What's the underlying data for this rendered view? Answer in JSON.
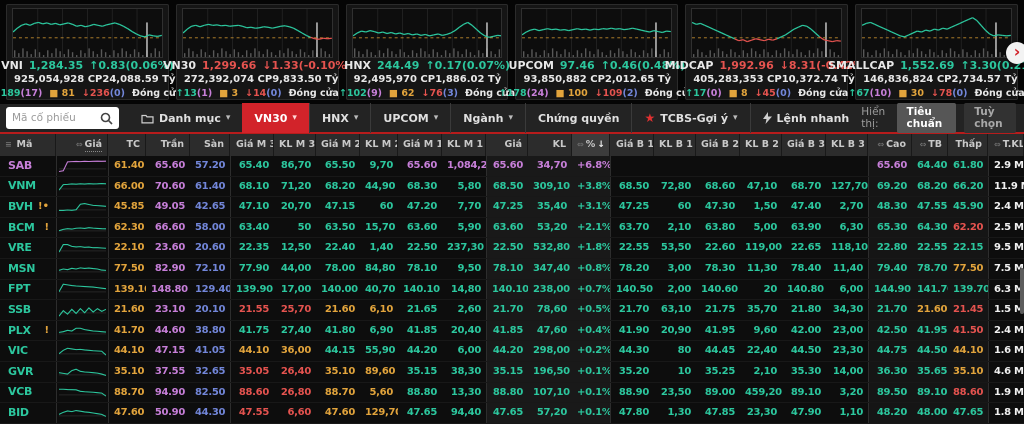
{
  "labels": {
    "session": "Đóng cửa",
    "display": "Hiển thị:",
    "next": "›"
  },
  "indices": [
    {
      "name": "VNI",
      "value": "1,284.35",
      "dir": "up",
      "change": "0.83(0.06%)",
      "cp": "925,054,928 CP",
      "ty": "24,088.59 Tỷ",
      "adv": "189",
      "adv_ceil": "17",
      "flat": "81",
      "dec": "236",
      "dec_floor": "0",
      "ref": 40,
      "seed": 1,
      "spark": [
        52,
        60,
        66,
        69,
        66,
        70,
        72,
        69,
        71,
        68,
        70,
        67,
        69,
        71,
        68,
        64,
        66,
        63,
        65,
        68,
        66,
        64,
        67,
        69,
        71,
        68,
        64,
        59,
        53,
        48,
        44,
        42,
        46,
        44,
        43,
        45
      ]
    },
    {
      "name": "VN30",
      "value": "1,299.66",
      "dir": "down",
      "change": "1.33(-0.10%)",
      "cp": "272,392,074 CP",
      "ty": "9,833.50 Tỷ",
      "adv": "13",
      "adv_ceil": "1",
      "flat": "3",
      "dec": "14",
      "dec_floor": "0",
      "ref": 40,
      "seed": 2,
      "spark": [
        50,
        58,
        64,
        66,
        63,
        66,
        68,
        66,
        67,
        65,
        66,
        64,
        65,
        66,
        64,
        61,
        62,
        60,
        61,
        63,
        62,
        60,
        62,
        64,
        65,
        63,
        60,
        55,
        50,
        45,
        41,
        38,
        37,
        39,
        38,
        39
      ]
    },
    {
      "name": "HNX",
      "value": "244.49",
      "dir": "up",
      "change": "0.17(0.07%)",
      "cp": "92,495,970 CP",
      "ty": "1,886.02 Tỷ",
      "adv": "102",
      "adv_ceil": "9",
      "flat": "62",
      "dec": "76",
      "dec_floor": "3",
      "ref": 40,
      "seed": 3,
      "spark": [
        44,
        50,
        54,
        52,
        55,
        53,
        50,
        52,
        49,
        51,
        48,
        50,
        47,
        49,
        46,
        48,
        45,
        47,
        44,
        46,
        48,
        45,
        47,
        50,
        55,
        62,
        68,
        72,
        66,
        58,
        50,
        44,
        41,
        43,
        45,
        44
      ]
    },
    {
      "name": "UPCOM",
      "value": "97.46",
      "dir": "up",
      "change": "0.46(0.48%)",
      "cp": "93,850,882 CP",
      "ty": "2,012.65 Tỷ",
      "adv": "178",
      "adv_ceil": "24",
      "flat": "100",
      "dec": "109",
      "dec_floor": "2",
      "ref": 40,
      "seed": 4,
      "spark": [
        46,
        52,
        56,
        58,
        55,
        57,
        59,
        57,
        58,
        56,
        57,
        55,
        57,
        59,
        57,
        58,
        56,
        58,
        57,
        59,
        58,
        60,
        58,
        59,
        57,
        58,
        60,
        58,
        56,
        54,
        52,
        55,
        53,
        51,
        54,
        53
      ]
    },
    {
      "name": "MIDCAP",
      "value": "1,992.96",
      "dir": "down",
      "change": "8.31(-0.42%)",
      "cp": "405,283,353 CP",
      "ty": "10,372.74 Tỷ",
      "adv": "17",
      "adv_ceil": "0",
      "flat": "8",
      "dec": "45",
      "dec_floor": "0",
      "ref": 40,
      "seed": 5,
      "spark": [
        72,
        68,
        70,
        66,
        62,
        58,
        54,
        50,
        46,
        42,
        38,
        34,
        36,
        32,
        35,
        38,
        36,
        34,
        37,
        35,
        38,
        42,
        46,
        52,
        58,
        62,
        66,
        64,
        58,
        50,
        42,
        36,
        34,
        32,
        34,
        33
      ]
    },
    {
      "name": "SMALLCAP",
      "value": "1,552.69",
      "dir": "up",
      "change": "3.30(0.21%)",
      "cp": "146,836,824 CP",
      "ty": "2,734.57 Tỷ",
      "adv": "67",
      "adv_ceil": "10",
      "flat": "30",
      "dec": "78",
      "dec_floor": "0",
      "ref": 40,
      "seed": 6,
      "spark": [
        66,
        70,
        72,
        68,
        64,
        60,
        56,
        52,
        48,
        44,
        42,
        46,
        50,
        54,
        52,
        56,
        54,
        58,
        56,
        60,
        58,
        62,
        66,
        70,
        74,
        78,
        82,
        76,
        66,
        56,
        48,
        44,
        46,
        45,
        44,
        45
      ]
    }
  ],
  "toolbar": {
    "search_placeholder": "Mã cổ phiếu",
    "tabs": [
      {
        "label": "Danh mục",
        "icon": "folder",
        "caret": true
      },
      {
        "label": "VN30",
        "caret": true,
        "active": true
      },
      {
        "label": "HNX",
        "caret": true
      },
      {
        "label": "UPCOM",
        "caret": true
      },
      {
        "label": "Ngành",
        "caret": true
      },
      {
        "label": "Chứng quyền"
      },
      {
        "label": "TCBS-Gợi ý",
        "icon": "star",
        "caret": true
      },
      {
        "label": "Lệnh nhanh",
        "icon": "bolt"
      }
    ],
    "display": {
      "label": "Hiển thị:",
      "options": [
        {
          "label": "Tiêu chuẩn",
          "active": true
        },
        {
          "label": "Tuỳ chọn",
          "active": false
        }
      ]
    }
  },
  "table": {
    "columns": [
      {
        "key": "ma",
        "label": "Mã",
        "left": true,
        "menu": true
      },
      {
        "key": "spark",
        "label": "Giá",
        "adjust": true,
        "dotted": true
      },
      {
        "key": "tc",
        "label": "TC"
      },
      {
        "key": "tran",
        "label": "Trần"
      },
      {
        "key": "san",
        "label": "Sàn"
      },
      {
        "key": "m3",
        "label": "Giá M 3"
      },
      {
        "key": "klm3",
        "label": "KL M 3"
      },
      {
        "key": "m2",
        "label": "Giá M 2"
      },
      {
        "key": "klm2",
        "label": "KL M 2"
      },
      {
        "key": "m1",
        "label": "Giá M 1"
      },
      {
        "key": "klm1",
        "label": "KL M 1"
      },
      {
        "key": "gia",
        "label": "Giá"
      },
      {
        "key": "kl",
        "label": "KL"
      },
      {
        "key": "pct",
        "label": "%",
        "sort": "↓",
        "adjust": true,
        "hl": true
      },
      {
        "key": "b1",
        "label": "Giá B 1"
      },
      {
        "key": "klb1",
        "label": "KL B 1"
      },
      {
        "key": "b2",
        "label": "Giá B 2"
      },
      {
        "key": "klb2",
        "label": "KL B 2"
      },
      {
        "key": "b3",
        "label": "Giá B 3"
      },
      {
        "key": "klb3",
        "label": "KL B 3"
      },
      {
        "key": "cao",
        "label": "Cao",
        "adjust": true
      },
      {
        "key": "tb",
        "label": "TB",
        "adjust": true
      },
      {
        "key": "thap",
        "label": "Thấp"
      },
      {
        "key": "tkl",
        "label": "T.KL",
        "adjust": true
      }
    ],
    "rows": [
      {
        "t": "SAB",
        "alert": "",
        "tcol": "p",
        "scol": "p",
        "spark": [
          10,
          15,
          80,
          82,
          83,
          82,
          84,
          83,
          84,
          85,
          84,
          85
        ],
        "v": {
          "tc": "61.40",
          "tran": "65.60",
          "san": "57.20",
          "m3": "65.40",
          "klm3": "86,70",
          "m2": "65.50",
          "klm2": "9,70",
          "m1": "65.60",
          "klm1": "1,084,20",
          "gia": "65.60",
          "kl": "34,70",
          "pct": "+6.8%",
          "b1": "",
          "klb1": "",
          "b2": "",
          "klb2": "",
          "b3": "",
          "klb3": "",
          "cao": "65.60",
          "tb": "64.40",
          "thap": "61.80",
          "tkl": "2.9 M"
        },
        "c": {
          "m1": "p",
          "klm1": "p",
          "gia": "p",
          "kl": "p",
          "pct": "p",
          "cao": "p"
        }
      },
      {
        "t": "VNM",
        "alert": "",
        "spark": [
          20,
          60,
          62,
          65,
          63,
          66,
          64,
          67,
          65,
          66,
          68,
          66
        ],
        "v": {
          "tc": "66.00",
          "tran": "70.60",
          "san": "61.40",
          "m3": "68.10",
          "klm3": "71,20",
          "m2": "68.20",
          "klm2": "44,90",
          "m1": "68.30",
          "klm1": "5,80",
          "gia": "68.50",
          "kl": "309,10",
          "pct": "+3.8%",
          "b1": "68.50",
          "klb1": "72,80",
          "b2": "68.60",
          "klb2": "47,10",
          "b3": "68.70",
          "klb3": "127,70",
          "cao": "69.20",
          "tb": "68.20",
          "thap": "66.20",
          "tkl": "11.9 M"
        },
        "c": {}
      },
      {
        "t": "BVH",
        "alert": "!•",
        "spark": [
          25,
          25,
          28,
          26,
          30,
          70,
          75,
          68,
          62,
          60,
          58,
          55
        ],
        "v": {
          "tc": "45.85",
          "tran": "49.05",
          "san": "42.65",
          "m3": "47.10",
          "klm3": "20,70",
          "m2": "47.15",
          "klm2": "60",
          "m1": "47.20",
          "klm1": "7,70",
          "gia": "47.25",
          "kl": "35,40",
          "pct": "+3.1%",
          "b1": "47.25",
          "klb1": "60",
          "b2": "47.30",
          "klb2": "1,50",
          "b3": "47.40",
          "klb3": "2,70",
          "cao": "48.30",
          "tb": "47.55",
          "thap": "45.90",
          "tkl": "2.4 M"
        },
        "c": {}
      },
      {
        "t": "BCM",
        "alert": "!",
        "spark": [
          30,
          40,
          45,
          42,
          48,
          50,
          47,
          52,
          49,
          47,
          45,
          44
        ],
        "v": {
          "tc": "62.30",
          "tran": "66.60",
          "san": "58.00",
          "m3": "63.40",
          "klm3": "50",
          "m2": "63.50",
          "klm2": "15,70",
          "m1": "63.60",
          "klm1": "5,90",
          "gia": "63.60",
          "kl": "53,20",
          "pct": "+2.1%",
          "b1": "63.70",
          "klb1": "2,10",
          "b2": "63.80",
          "klb2": "5,00",
          "b3": "63.90",
          "klb3": "6,30",
          "cao": "65.30",
          "tb": "64.30",
          "thap": "62.20",
          "tkl": "2.5 M"
        },
        "c": {
          "thap": "r"
        }
      },
      {
        "t": "VRE",
        "alert": "",
        "spark": [
          20,
          75,
          75,
          62,
          58,
          60,
          55,
          57,
          52,
          52,
          50,
          48
        ],
        "v": {
          "tc": "22.10",
          "tran": "23.60",
          "san": "20.60",
          "m3": "22.35",
          "klm3": "12,50",
          "m2": "22.40",
          "klm2": "1,40",
          "m1": "22.50",
          "klm1": "237,30",
          "gia": "22.50",
          "kl": "532,80",
          "pct": "+1.8%",
          "b1": "22.55",
          "klb1": "53,50",
          "b2": "22.60",
          "klb2": "119,00",
          "b3": "22.65",
          "klb3": "118,10",
          "cao": "22.80",
          "tb": "22.55",
          "thap": "22.15",
          "tkl": "9.5 M"
        },
        "c": {}
      },
      {
        "t": "MSN",
        "alert": "",
        "spark": [
          40,
          50,
          45,
          55,
          50,
          58,
          54,
          57,
          53,
          50,
          42,
          40
        ],
        "v": {
          "tc": "77.50",
          "tran": "82.90",
          "san": "72.10",
          "m3": "77.90",
          "klm3": "44,00",
          "m2": "78.00",
          "klm2": "84,80",
          "m1": "78.10",
          "klm1": "9,50",
          "gia": "78.10",
          "kl": "347,40",
          "pct": "+0.8%",
          "b1": "78.20",
          "klb1": "3,00",
          "b2": "78.30",
          "klb2": "11,30",
          "b3": "78.40",
          "klb3": "11,40",
          "cao": "79.40",
          "tb": "78.70",
          "thap": "77.50",
          "tkl": "7.5 M"
        },
        "c": {
          "thap": "o"
        }
      },
      {
        "t": "FPT",
        "alert": "",
        "spark": [
          30,
          85,
          80,
          75,
          72,
          70,
          68,
          66,
          64,
          60,
          56,
          52
        ],
        "v": {
          "tc": "139.10",
          "tran": "148.80",
          "san": "129.40",
          "m3": "139.90",
          "klm3": "17,00",
          "m2": "140.00",
          "klm2": "40,70",
          "m1": "140.10",
          "klm1": "14,80",
          "gia": "140.10",
          "kl": "238,00",
          "pct": "+0.7%",
          "b1": "140.50",
          "klb1": "2,00",
          "b2": "140.60",
          "klb2": "20",
          "b3": "140.80",
          "klb3": "6,00",
          "cao": "144.90",
          "tb": "141.70",
          "thap": "139.70",
          "tkl": "6.3 M"
        },
        "c": {}
      },
      {
        "t": "SSB",
        "alert": "",
        "spark": [
          5,
          45,
          20,
          55,
          25,
          60,
          30,
          65,
          35,
          60,
          40,
          55
        ],
        "v": {
          "tc": "21.60",
          "tran": "23.10",
          "san": "20.10",
          "m3": "21.55",
          "klm3": "25,70",
          "m2": "21.60",
          "klm2": "6,10",
          "m1": "21.65",
          "klm1": "2,60",
          "gia": "21.70",
          "kl": "78,60",
          "pct": "+0.5%",
          "b1": "21.70",
          "klb1": "63,10",
          "b2": "21.75",
          "klb2": "35,70",
          "b3": "21.80",
          "klb3": "34,30",
          "cao": "21.70",
          "tb": "21.60",
          "thap": "21.45",
          "tkl": "1.5 M"
        },
        "c": {
          "m3": "r",
          "klm3": "r",
          "m2": "o",
          "klm2": "o",
          "tb": "o",
          "thap": "r"
        }
      },
      {
        "t": "PLX",
        "alert": "!",
        "spark": [
          40,
          45,
          55,
          50,
          70,
          70,
          60,
          55,
          50,
          48,
          45,
          42
        ],
        "v": {
          "tc": "41.70",
          "tran": "44.60",
          "san": "38.80",
          "m3": "41.75",
          "klm3": "27,40",
          "m2": "41.80",
          "klm2": "6,90",
          "m1": "41.85",
          "klm1": "20,40",
          "gia": "41.85",
          "kl": "47,60",
          "pct": "+0.4%",
          "b1": "41.90",
          "klb1": "20,90",
          "b2": "41.95",
          "klb2": "9,60",
          "b3": "42.00",
          "klb3": "23,00",
          "cao": "42.50",
          "tb": "41.95",
          "thap": "41.50",
          "tkl": "2.4 M"
        },
        "c": {
          "thap": "r"
        }
      },
      {
        "t": "VIC",
        "alert": "",
        "spark": [
          30,
          55,
          70,
          65,
          60,
          62,
          58,
          55,
          52,
          50,
          48,
          20
        ],
        "v": {
          "tc": "44.10",
          "tran": "47.15",
          "san": "41.05",
          "m3": "44.10",
          "klm3": "36,00",
          "m2": "44.15",
          "klm2": "55,90",
          "m1": "44.20",
          "klm1": "6,00",
          "gia": "44.20",
          "kl": "298,00",
          "pct": "+0.2%",
          "b1": "44.30",
          "klb1": "80",
          "b2": "44.45",
          "klb2": "22,40",
          "b3": "44.50",
          "klb3": "23,30",
          "cao": "44.75",
          "tb": "44.50",
          "thap": "44.10",
          "tkl": "1.6 M"
        },
        "c": {
          "m3": "o",
          "klm3": "o",
          "thap": "o"
        }
      },
      {
        "t": "GVR",
        "alert": "",
        "spark": [
          45,
          40,
          35,
          60,
          70,
          55,
          50,
          48,
          45,
          42,
          35,
          25
        ],
        "v": {
          "tc": "35.10",
          "tran": "37.55",
          "san": "32.65",
          "m3": "35.05",
          "klm3": "26,40",
          "m2": "35.10",
          "klm2": "89,60",
          "m1": "35.15",
          "klm1": "38,30",
          "gia": "35.15",
          "kl": "196,50",
          "pct": "+0.1%",
          "b1": "35.20",
          "klb1": "10",
          "b2": "35.25",
          "klb2": "2,10",
          "b3": "35.30",
          "klb3": "14,00",
          "cao": "36.30",
          "tb": "35.65",
          "thap": "35.10",
          "tkl": "4.6 M"
        },
        "c": {
          "m3": "r",
          "klm3": "r",
          "m2": "o",
          "klm2": "o",
          "thap": "o"
        }
      },
      {
        "t": "VCB",
        "alert": "",
        "spark": [
          70,
          70,
          68,
          67,
          66,
          55,
          52,
          50,
          48,
          45,
          42,
          20
        ],
        "v": {
          "tc": "88.70",
          "tran": "94.90",
          "san": "82.50",
          "m3": "88.60",
          "klm3": "26,80",
          "m2": "88.70",
          "klm2": "5,60",
          "m1": "88.80",
          "klm1": "13,30",
          "gia": "88.80",
          "kl": "107,10",
          "pct": "+0.1%",
          "b1": "88.90",
          "klb1": "23,50",
          "b2": "89.00",
          "klb2": "459,20",
          "b3": "89.10",
          "klb3": "3,20",
          "cao": "89.50",
          "tb": "89.10",
          "thap": "88.60",
          "tkl": "1.9 M"
        },
        "c": {
          "m3": "r",
          "klm3": "r",
          "m2": "o",
          "klm2": "o",
          "thap": "r"
        }
      },
      {
        "t": "BID",
        "alert": "",
        "spark": [
          40,
          55,
          65,
          60,
          68,
          63,
          58,
          55,
          50,
          45,
          40,
          25
        ],
        "v": {
          "tc": "47.60",
          "tran": "50.90",
          "san": "44.30",
          "m3": "47.55",
          "klm3": "6,60",
          "m2": "47.60",
          "klm2": "129,70",
          "m1": "47.65",
          "klm1": "94,40",
          "gia": "47.65",
          "kl": "57,20",
          "pct": "+0.1%",
          "b1": "47.80",
          "klb1": "1,30",
          "b2": "47.85",
          "klb2": "23,30",
          "b3": "47.90",
          "klb3": "1,10",
          "cao": "48.20",
          "tb": "48.00",
          "thap": "47.65",
          "tkl": "1.8 M"
        },
        "c": {
          "m3": "r",
          "klm3": "r",
          "m2": "o",
          "klm2": "o"
        }
      }
    ]
  }
}
